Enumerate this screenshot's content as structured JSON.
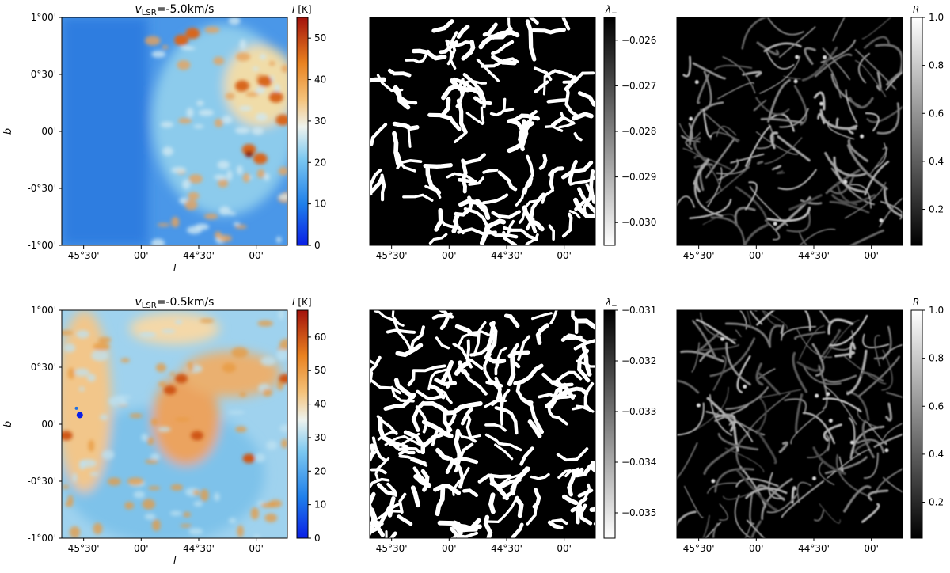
{
  "chart_data": [
    {
      "type": "heatmap",
      "row": 0,
      "col": 0,
      "title": "-5.0km/s",
      "title_prefix": "v",
      "title_sub": "LSR",
      "title_eq": "=",
      "xlabel": "l",
      "ylabel": "b",
      "xticks": [
        "45°30'",
        "00'",
        "44°30'",
        "00'"
      ],
      "yticks": [
        "1°00'",
        "0°30'",
        "00'",
        "-0°30'",
        "-1°00'"
      ],
      "colorbar": {
        "label": "I [K]",
        "label_sym": "I",
        "label_unit": "[K]",
        "range": [
          0,
          55
        ],
        "ticks": [
          "0",
          "10",
          "20",
          "30",
          "40",
          "50"
        ],
        "cmap": "blue-white-red"
      }
    },
    {
      "type": "heatmap",
      "row": 0,
      "col": 1,
      "xticks": [
        "45°30'",
        "00'",
        "44°30'",
        "00'"
      ],
      "colorbar": {
        "label": "λ−",
        "label_sym": "λ",
        "label_sub": "−",
        "range": [
          -0.0305,
          -0.0255
        ],
        "ticks": [
          "−0.026",
          "−0.027",
          "−0.028",
          "−0.029",
          "−0.030"
        ],
        "cmap": "gray-reversed"
      }
    },
    {
      "type": "heatmap",
      "row": 0,
      "col": 2,
      "xticks": [
        "45°30'",
        "00'",
        "44°30'",
        "00'"
      ],
      "colorbar": {
        "label": "R",
        "range": [
          0.05,
          1.0
        ],
        "ticks": [
          "0.2",
          "0.4",
          "0.6",
          "0.8",
          "1.0"
        ],
        "cmap": "gray"
      }
    },
    {
      "type": "heatmap",
      "row": 1,
      "col": 0,
      "title": "-0.5km/s",
      "title_prefix": "v",
      "title_sub": "LSR",
      "title_eq": "=",
      "xlabel": "l",
      "ylabel": "b",
      "xticks": [
        "45°30'",
        "00'",
        "44°30'",
        "00'"
      ],
      "yticks": [
        "1°00'",
        "0°30'",
        "00'",
        "-0°30'",
        "-1°00'"
      ],
      "colorbar": {
        "label": "I [K]",
        "label_sym": "I",
        "label_unit": "[K]",
        "range": [
          0,
          68
        ],
        "ticks": [
          "0",
          "10",
          "20",
          "30",
          "40",
          "50",
          "60"
        ],
        "cmap": "blue-white-red"
      }
    },
    {
      "type": "heatmap",
      "row": 1,
      "col": 1,
      "xticks": [
        "45°30'",
        "00'",
        "44°30'",
        "00'"
      ],
      "colorbar": {
        "label": "λ−",
        "label_sym": "λ",
        "label_sub": "−",
        "range": [
          -0.0355,
          -0.031
        ],
        "ticks": [
          "−0.031",
          "−0.032",
          "−0.033",
          "−0.034",
          "−0.035"
        ],
        "cmap": "gray-reversed"
      }
    },
    {
      "type": "heatmap",
      "row": 1,
      "col": 2,
      "xticks": [
        "45°30'",
        "00'",
        "44°30'",
        "00'"
      ],
      "colorbar": {
        "label": "R",
        "range": [
          0.05,
          1.0
        ],
        "ticks": [
          "0.2",
          "0.4",
          "0.6",
          "0.8",
          "1.0"
        ],
        "cmap": "gray"
      }
    }
  ]
}
